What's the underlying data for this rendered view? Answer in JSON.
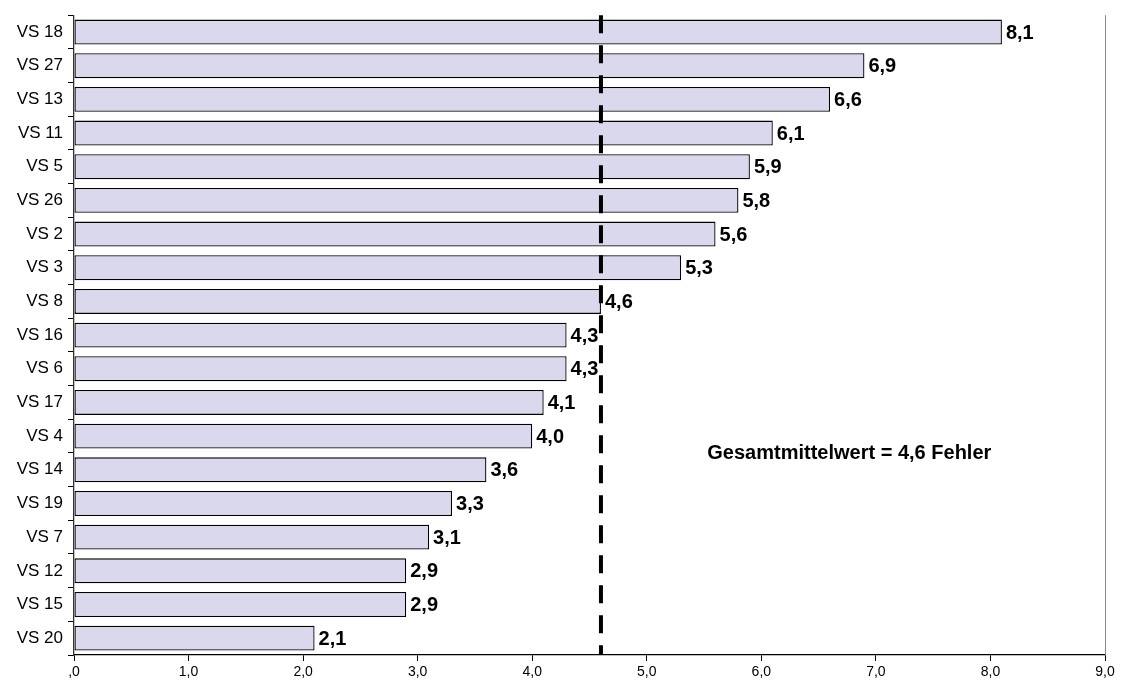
{
  "chart_data": {
    "type": "bar",
    "orientation": "horizontal",
    "categories": [
      "VS 18",
      "VS 27",
      "VS 13",
      "VS 11",
      "VS 5",
      "VS 26",
      "VS 2",
      "VS 3",
      "VS 8",
      "VS 16",
      "VS 6",
      "VS 17",
      "VS 4",
      "VS 14",
      "VS 19",
      "VS 7",
      "VS 12",
      "VS 15",
      "VS 20"
    ],
    "values": [
      8.1,
      6.9,
      6.6,
      6.1,
      5.9,
      5.8,
      5.6,
      5.3,
      4.6,
      4.3,
      4.3,
      4.1,
      4.0,
      3.6,
      3.3,
      3.1,
      2.9,
      2.9,
      2.1
    ],
    "color": "#d9d8ec",
    "value_labels": [
      "8,1",
      "6,9",
      "6,6",
      "6,1",
      "5,9",
      "5,8",
      "5,6",
      "5,3",
      "4,6",
      "4,3",
      "4,3",
      "4,1",
      "4,0",
      "3,6",
      "3,3",
      "3,1",
      "2,9",
      "2,9",
      "2,1"
    ],
    "xlim": [
      0,
      9
    ],
    "xticks": [
      {
        "value": 0,
        "label": ",0"
      },
      {
        "value": 1,
        "label": "1,0"
      },
      {
        "value": 2,
        "label": "2,0"
      },
      {
        "value": 3,
        "label": "3,0"
      },
      {
        "value": 4,
        "label": "4,0"
      },
      {
        "value": 5,
        "label": "5,0"
      },
      {
        "value": 6,
        "label": "6,0"
      },
      {
        "value": 7,
        "label": "7,0"
      },
      {
        "value": 8,
        "label": "8,0"
      },
      {
        "value": 9,
        "label": "9,0"
      }
    ],
    "ref_lines": [
      {
        "axis": "x",
        "value": 4.6,
        "color": "#000000",
        "line_style": "dashed"
      }
    ],
    "annotations": [
      "Gesamtmittelwert = 4,6 Fehler"
    ]
  }
}
